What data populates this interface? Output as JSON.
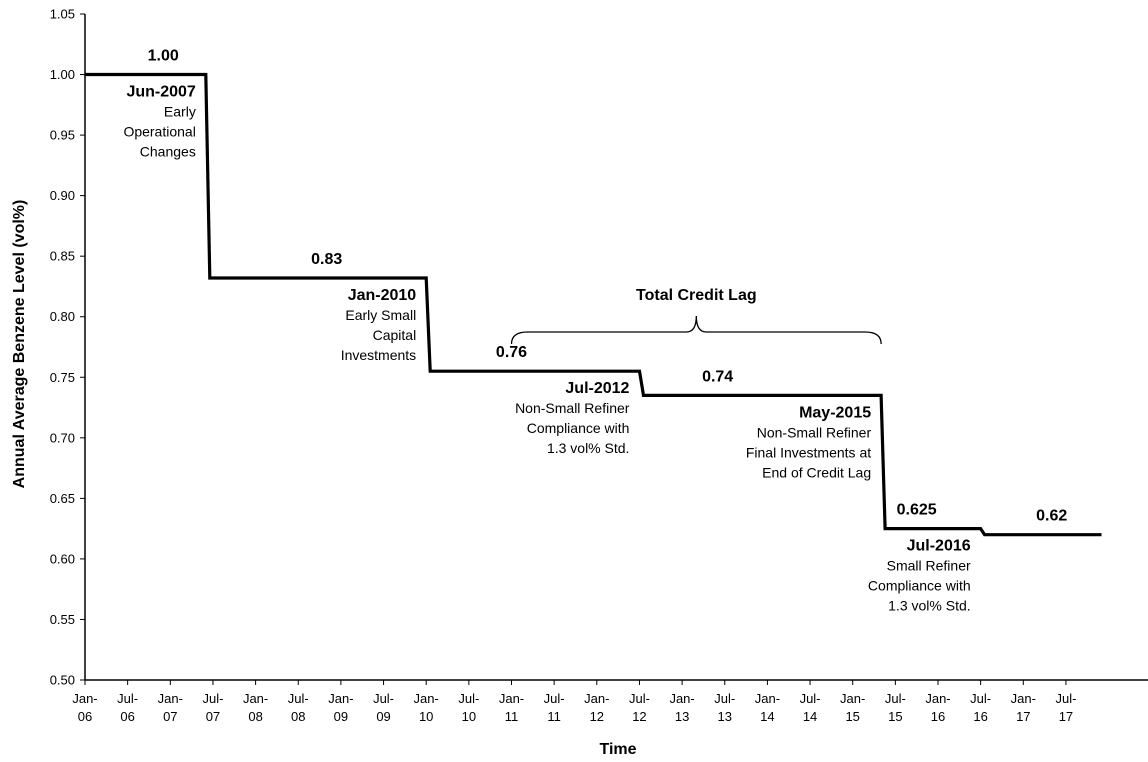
{
  "chart_data": {
    "type": "line",
    "step": true,
    "xlabel": "Time",
    "ylabel": "Annual Average Benzene Level (vol%)",
    "ylim": [
      0.5,
      1.05
    ],
    "yticks": [
      "0.50",
      "0.55",
      "0.60",
      "0.65",
      "0.70",
      "0.75",
      "0.80",
      "0.85",
      "0.90",
      "0.95",
      "1.00",
      "1.05"
    ],
    "xlim": [
      "2006-01",
      "2017-12"
    ],
    "xticks": [
      {
        "month": "2006-01",
        "line1": "Jan-",
        "line2": "06"
      },
      {
        "month": "2006-07",
        "line1": "Jul-",
        "line2": "06"
      },
      {
        "month": "2007-01",
        "line1": "Jan-",
        "line2": "07"
      },
      {
        "month": "2007-07",
        "line1": "Jul-",
        "line2": "07"
      },
      {
        "month": "2008-01",
        "line1": "Jan-",
        "line2": "08"
      },
      {
        "month": "2008-07",
        "line1": "Jul-",
        "line2": "08"
      },
      {
        "month": "2009-01",
        "line1": "Jan-",
        "line2": "09"
      },
      {
        "month": "2009-07",
        "line1": "Jul-",
        "line2": "09"
      },
      {
        "month": "2010-01",
        "line1": "Jan-",
        "line2": "10"
      },
      {
        "month": "2010-07",
        "line1": "Jul-",
        "line2": "10"
      },
      {
        "month": "2011-01",
        "line1": "Jan-",
        "line2": "11"
      },
      {
        "month": "2011-07",
        "line1": "Jul-",
        "line2": "11"
      },
      {
        "month": "2012-01",
        "line1": "Jan-",
        "line2": "12"
      },
      {
        "month": "2012-07",
        "line1": "Jul-",
        "line2": "12"
      },
      {
        "month": "2013-01",
        "line1": "Jan-",
        "line2": "13"
      },
      {
        "month": "2013-07",
        "line1": "Jul-",
        "line2": "13"
      },
      {
        "month": "2014-01",
        "line1": "Jan-",
        "line2": "14"
      },
      {
        "month": "2014-07",
        "line1": "Jul-",
        "line2": "14"
      },
      {
        "month": "2015-01",
        "line1": "Jan-",
        "line2": "15"
      },
      {
        "month": "2015-07",
        "line1": "Jul-",
        "line2": "15"
      },
      {
        "month": "2016-01",
        "line1": "Jan-",
        "line2": "16"
      },
      {
        "month": "2016-07",
        "line1": "Jul-",
        "line2": "16"
      },
      {
        "month": "2017-01",
        "line1": "Jan-",
        "line2": "17"
      },
      {
        "month": "2017-07",
        "line1": "Jul-",
        "line2": "17"
      }
    ],
    "series": [
      {
        "points": [
          {
            "x": "2006-01",
            "y": 1.0
          },
          {
            "x": "2007-06",
            "y": 1.0
          },
          {
            "x": "2007-06",
            "y": 0.832
          },
          {
            "x": "2010-01",
            "y": 0.832
          },
          {
            "x": "2010-01",
            "y": 0.755
          },
          {
            "x": "2012-07",
            "y": 0.755
          },
          {
            "x": "2012-07",
            "y": 0.735
          },
          {
            "x": "2015-05",
            "y": 0.735
          },
          {
            "x": "2015-05",
            "y": 0.625
          },
          {
            "x": "2016-07",
            "y": 0.625
          },
          {
            "x": "2016-07",
            "y": 0.62
          },
          {
            "x": "2017-12",
            "y": 0.62
          }
        ]
      }
    ],
    "value_labels": [
      {
        "text": "1.00",
        "x": "2006-12",
        "y": 1.0
      },
      {
        "text": "0.83",
        "x": "2008-11",
        "y": 0.832
      },
      {
        "text": "0.76",
        "x": "2011-01",
        "y": 0.755
      },
      {
        "text": "0.74",
        "x": "2013-06",
        "y": 0.735
      },
      {
        "text": "0.625",
        "x": "2015-10",
        "y": 0.625
      },
      {
        "text": "0.62",
        "x": "2017-05",
        "y": 0.62
      }
    ],
    "annotations": [
      {
        "x": "2007-06",
        "y": 1.0,
        "date": "Jun-2007",
        "lines": [
          "Early",
          "Operational",
          "Changes"
        ]
      },
      {
        "x": "2010-01",
        "y": 0.832,
        "date": "Jan-2010",
        "lines": [
          "Early Small",
          "Capital",
          "Investments"
        ]
      },
      {
        "x": "2012-07",
        "y": 0.755,
        "date": "Jul-2012",
        "lines": [
          "Non-Small Refiner",
          "Compliance with",
          "1.3 vol% Std."
        ]
      },
      {
        "x": "2015-05",
        "y": 0.735,
        "date": "May-2015",
        "lines": [
          "Non-Small Refiner",
          "Final Investments at",
          "End of Credit Lag"
        ]
      },
      {
        "x": "2016-07",
        "y": 0.625,
        "date": "Jul-2016",
        "lines": [
          "Small Refiner",
          "Compliance with",
          "1.3 vol% Std."
        ]
      }
    ],
    "brace": {
      "label": "Total Credit Lag",
      "x_start": "2011-01",
      "x_end": "2015-05"
    },
    "grid": false,
    "legend": "none"
  }
}
